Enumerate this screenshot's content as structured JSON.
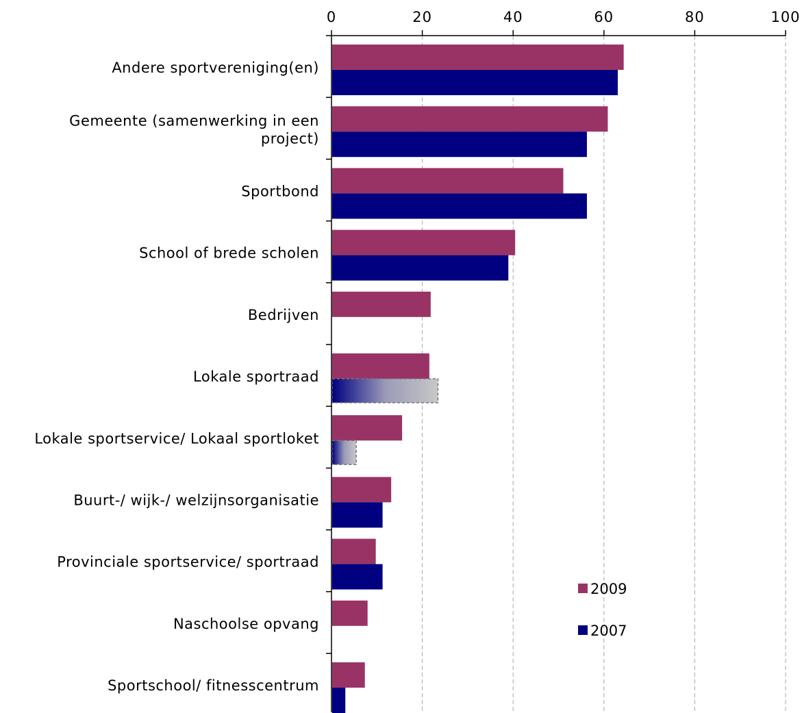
{
  "chart_data": {
    "type": "bar",
    "orientation": "horizontal",
    "categories": [
      [
        "Andere sportvereniging(en)"
      ],
      [
        "Gemeente (samenwerking in een",
        "project)"
      ],
      [
        "Sportbond"
      ],
      [
        "School of brede scholen "
      ],
      [
        "Bedrijven"
      ],
      [
        "Lokale sportraad"
      ],
      [
        "Lokale sportservice/ Lokaal sportloket"
      ],
      [
        "Buurt-/ wijk-/ welzijnsorganisatie "
      ],
      [
        "Provinciale sportservice/ sportraad"
      ],
      [
        "Naschoolse opvang"
      ],
      [
        "Sportschool/ fitnesscentrum"
      ]
    ],
    "series": [
      {
        "name": "2009",
        "color": "#993366",
        "values": [
          64.2,
          60.7,
          50.9,
          40.3,
          21.7,
          21.4,
          15.4,
          13.0,
          9.6,
          7.8,
          7.2
        ]
      },
      {
        "name": "2007",
        "color": "#000080",
        "values": [
          62.9,
          56.1,
          56.1,
          38.8,
          null,
          23.3,
          5.3,
          11.1,
          11.1,
          null,
          2.9
        ],
        "highlighted_bars": [
          5,
          6
        ]
      }
    ],
    "xlim": [
      0,
      100
    ],
    "xticks": [
      "0",
      "20",
      "40",
      "60",
      "80",
      "100"
    ],
    "x_axis_position": "top",
    "grid": "vertical dashed",
    "legend_position": "bottom-right"
  }
}
